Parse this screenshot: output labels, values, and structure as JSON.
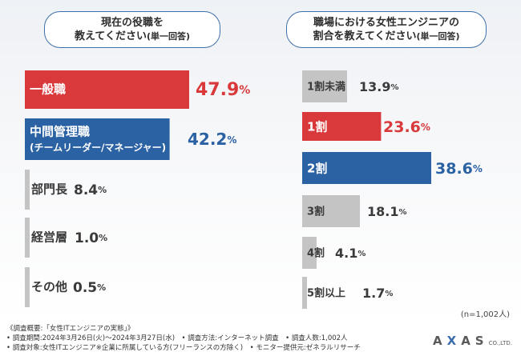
{
  "questions": {
    "q1": {
      "line1": "現在の役職を",
      "line2_main": "教えてください",
      "line2_note": "(単一回答)"
    },
    "q2": {
      "line1": "職場における女性エンジニアの",
      "line2_main": "割合を教えてください",
      "line2_note": "(単一回答)"
    }
  },
  "chart_data": [
    {
      "type": "bar",
      "orientation": "horizontal",
      "title": "現在の役職を教えてください(単一回答)",
      "categories": [
        "一般職",
        "中間管理職",
        "部門長",
        "経営層",
        "その他"
      ],
      "sublabels": [
        "",
        "(チームリーダー/マネージャー)",
        "",
        "",
        ""
      ],
      "values": [
        47.9,
        42.2,
        8.4,
        1.0,
        0.5
      ],
      "value_labels": [
        "47.9%",
        "42.2%",
        "8.4%",
        "1.0%",
        "0.5%"
      ],
      "highlight": [
        "red",
        "blue",
        "gray",
        "gray",
        "gray"
      ]
    },
    {
      "type": "bar",
      "orientation": "horizontal",
      "title": "職場における女性エンジニアの割合を教えてください(単一回答)",
      "categories": [
        "1割未満",
        "1割",
        "2割",
        "3割",
        "4割",
        "5割以上"
      ],
      "values": [
        13.9,
        23.6,
        38.6,
        18.1,
        4.1,
        1.7
      ],
      "value_labels": [
        "13.9%",
        "23.6%",
        "38.6%",
        "18.1%",
        "4.1%",
        "1.7%"
      ],
      "highlight": [
        "gray",
        "red",
        "blue",
        "gray",
        "gray",
        "gray"
      ]
    }
  ],
  "colors": {
    "red": "#d9393b",
    "blue": "#2b62a4",
    "gray": "#c4c4c4",
    "gray_text": "#3a3a3a"
  },
  "n_label": "(n=1,002人)",
  "footer": {
    "line1": "《調査概要:「女性ITエンジニアの実態」》",
    "line2": "• 調査期間:2024年3月26日(火)〜2024年3月27日(水)　• 調査方法:インターネット調査　• 調査人数:1,002人",
    "line3": "• 調査対象:女性ITエンジニア※企業に所属している方(フリーランスの方除く)　• モニター提供元:ゼネラルリサーチ"
  },
  "logo": {
    "text_a": "A",
    "text_x": "X",
    "text_rest": "AS",
    "suffix": "CO.,LTD."
  }
}
